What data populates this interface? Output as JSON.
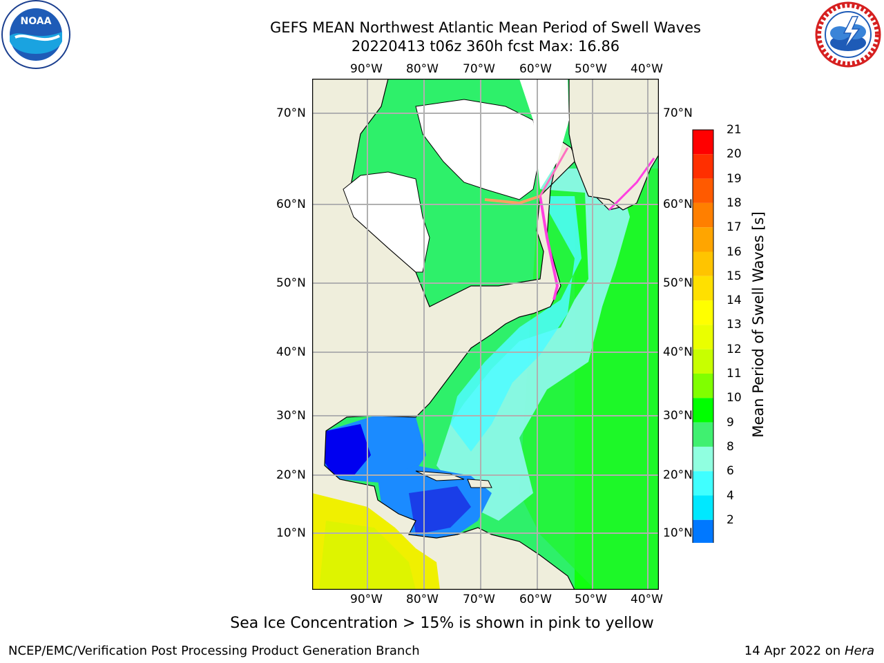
{
  "header": {
    "title_line1": "GEFS MEAN Northwest Atlantic Mean Period of Swell Waves",
    "title_line2": "20220413 t06z 360h fcst   Max: 16.86"
  },
  "logos": {
    "left": "noaa-logo",
    "left_text": "NOAA",
    "right": "nws-logo"
  },
  "map": {
    "lon_labels": [
      "90°W",
      "80°W",
      "70°W",
      "60°W",
      "50°W",
      "40°W"
    ],
    "lat_labels_left": [
      "70°N",
      "60°N",
      "50°N",
      "40°N",
      "30°N",
      "20°N",
      "10°N"
    ],
    "lat_labels_right": [
      "70°N",
      "60°N",
      "50°N",
      "40°N",
      "30°N",
      "20°N",
      "10°N"
    ],
    "colors": {
      "land": "#efeedc",
      "ice_free_land": "#ffffff",
      "grid": "#b0b0b0"
    }
  },
  "colorbar": {
    "title": "Mean Period of Swell Waves [s]",
    "ticks": [
      "21",
      "20",
      "19",
      "18",
      "17",
      "16",
      "15",
      "14",
      "13",
      "12",
      "11",
      "10",
      "9",
      "8",
      "6",
      "4",
      "2"
    ],
    "colors": [
      "#ff0000",
      "#ff2f00",
      "#ff5a00",
      "#ff7f00",
      "#ffa500",
      "#ffc400",
      "#ffe000",
      "#ffff00",
      "#eaff00",
      "#c8ff00",
      "#80ff00",
      "#00ff00",
      "#40f070",
      "#90ffe0",
      "#40ffff",
      "#00e8ff",
      "#0078ff",
      "#0000ff"
    ]
  },
  "footer": {
    "note": "Sea Ice Concentration > 15% is shown in pink to yellow",
    "left": "NCEP/EMC/Verification Post Processing Product Generation Branch",
    "right_date": "14 Apr 2022 on",
    "right_host": "Hera"
  }
}
